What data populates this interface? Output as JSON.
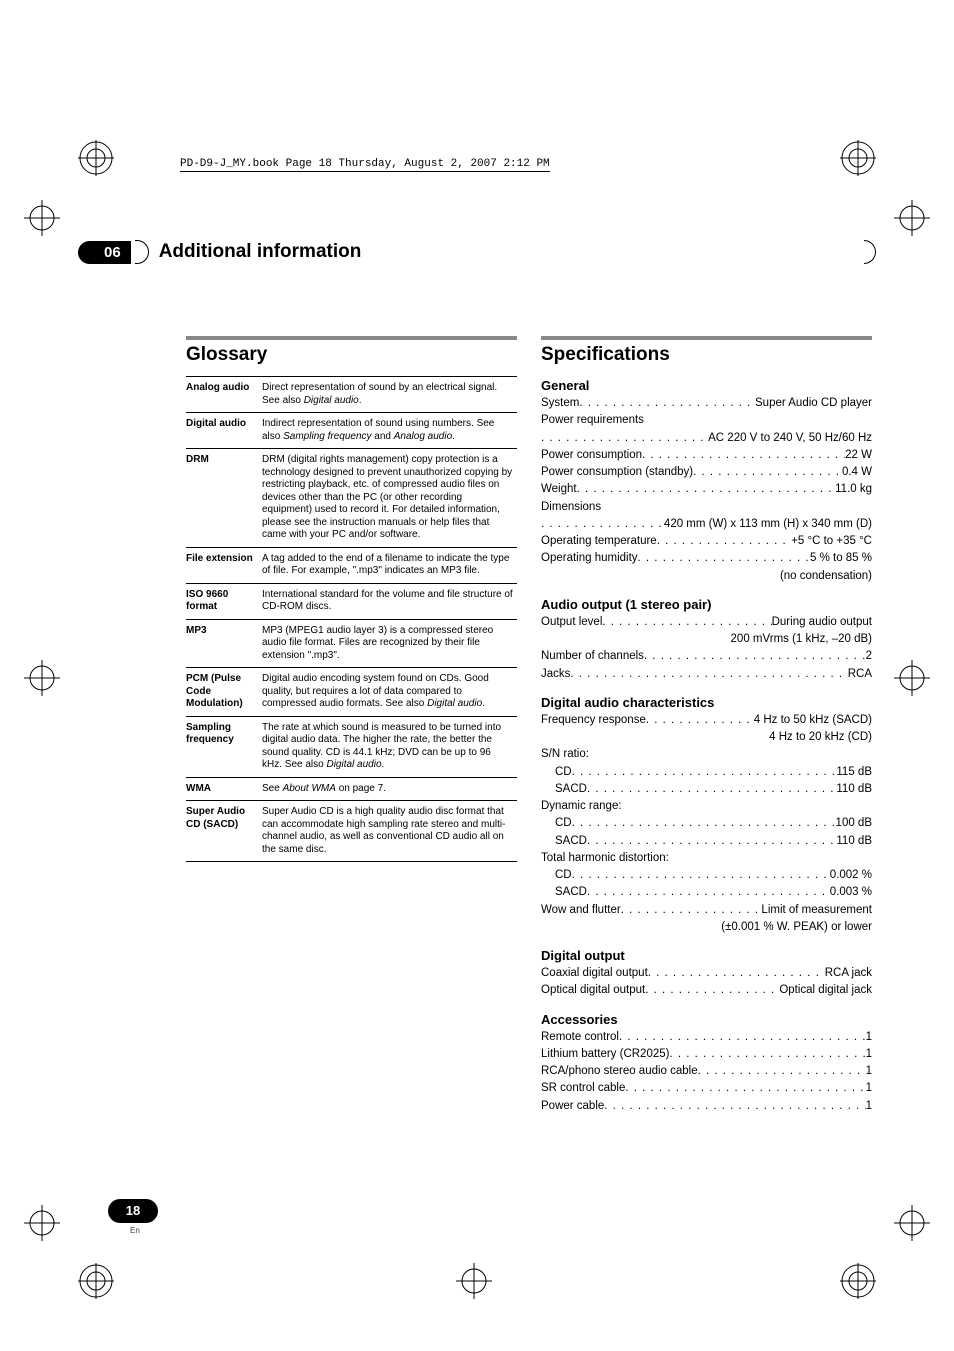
{
  "print_header": "PD-D9-J_MY.book  Page 18  Thursday, August 2, 2007  2:12 PM",
  "chapter": {
    "num": "06",
    "title": "Additional information"
  },
  "glossary": {
    "title": "Glossary",
    "rows": [
      {
        "term": "Analog audio",
        "def": "Direct representation of sound by an electrical signal. See also <em>Digital audio</em>."
      },
      {
        "term": "Digital audio",
        "def": "Indirect representation of sound using numbers. See also <em>Sampling frequency</em> and <em>Analog audio</em>."
      },
      {
        "term": "DRM",
        "def": "DRM (digital rights management) copy protection is a technology designed to prevent unauthorized copying by restricting playback, etc. of compressed audio files on devices other than the PC (or other recording equipment) used to record it. For detailed information, please see the instruction manuals or help files that came with your PC and/or software."
      },
      {
        "term": "File extension",
        "def": "A tag added to the end of a filename to indicate the type of file. For example, \".mp3\" indicates an MP3 file."
      },
      {
        "term": "ISO 9660 format",
        "def": "International standard for the volume and file structure of CD-ROM discs."
      },
      {
        "term": "MP3",
        "def": "MP3 (MPEG1 audio layer 3) is a compressed stereo audio file format. Files are recognized by their file extension \".mp3\"."
      },
      {
        "term": "PCM (Pulse Code Modulation)",
        "def": "Digital audio encoding system found on CDs. Good quality, but requires a lot of data compared to compressed audio formats. See also <em>Digital audio</em>."
      },
      {
        "term": "Sampling frequency",
        "def": "The rate at which sound is measured to be turned into digital audio data. The higher the rate, the better the sound quality. CD is 44.1 kHz; DVD can be up to 96 kHz. See also <em>Digital audio</em>."
      },
      {
        "term": "WMA",
        "def": "See <em>About WMA</em> on page 7."
      },
      {
        "term": "Super Audio CD (SACD)",
        "def": "Super Audio CD is a high quality audio disc format that can accommodate high sampling rate stereo and multi-channel audio, as well as conventional CD audio all on the same disc."
      }
    ]
  },
  "specs": {
    "title": "Specifications",
    "general": {
      "title": "General",
      "system": {
        "l": "System",
        "v": "Super Audio CD player"
      },
      "power_req_label": "Power requirements",
      "power_req_value": "AC 220 V to 240 V, 50 Hz/60 Hz",
      "power_cons": {
        "l": "Power consumption",
        "v": "22 W"
      },
      "power_cons_sb": {
        "l": "Power consumption (standby)",
        "v": "0.4 W"
      },
      "weight": {
        "l": "Weight",
        "v": "11.0 kg"
      },
      "dim_label": "Dimensions",
      "dim_value": "420 mm (W) x 113 mm (H) x 340 mm (D)",
      "op_temp": {
        "l": "Operating temperature",
        "v": "+5  °C to +35 °C"
      },
      "op_hum": {
        "l": "Operating humidity",
        "v": "5 % to 85 %"
      },
      "op_hum_note": "(no condensation)"
    },
    "audio_out": {
      "title": "Audio output (1 stereo pair)",
      "out_level": {
        "l": "Output level",
        "v": "During audio output"
      },
      "out_level_sub": "200 mVrms (1 kHz, –20 dB)",
      "channels": {
        "l": "Number of channels",
        "v": "2"
      },
      "jacks": {
        "l": "Jacks",
        "v": "RCA"
      }
    },
    "digital_char": {
      "title": "Digital audio characteristics",
      "freq": {
        "l": "Frequency response",
        "v": "4 Hz to 50 kHz (SACD)"
      },
      "freq_sub": "4 Hz to 20 kHz (CD)",
      "sn_label": "S/N ratio:",
      "sn_cd": {
        "l": "CD",
        "v": "115 dB"
      },
      "sn_sacd": {
        "l": "SACD",
        "v": "110 dB"
      },
      "dyn_label": "Dynamic range:",
      "dyn_cd": {
        "l": "CD",
        "v": "100 dB"
      },
      "dyn_sacd": {
        "l": "SACD",
        "v": "110 dB"
      },
      "thd_label": "Total harmonic distortion:",
      "thd_cd": {
        "l": "CD",
        "v": "0.002 %"
      },
      "thd_sacd": {
        "l": "SACD",
        "v": "0.003 %"
      },
      "wow": {
        "l": "Wow and flutter",
        "v": "Limit of measurement"
      },
      "wow_sub": "(±0.001 % W. PEAK) or lower"
    },
    "digital_out": {
      "title": "Digital output",
      "coax": {
        "l": "Coaxial digital output",
        "v": "RCA jack"
      },
      "opt": {
        "l": "Optical digital output",
        "v": "Optical digital jack"
      }
    },
    "accessories": {
      "title": "Accessories",
      "items": [
        {
          "l": "Remote control",
          "v": "1"
        },
        {
          "l": "Lithium battery (CR2025)",
          "v": "1"
        },
        {
          "l": "RCA/phono stereo audio cable",
          "v": "1"
        },
        {
          "l": "SR control cable",
          "v": "1"
        },
        {
          "l": "Power cable",
          "v": "1"
        }
      ]
    }
  },
  "page": {
    "num": "18",
    "lang": "En"
  }
}
